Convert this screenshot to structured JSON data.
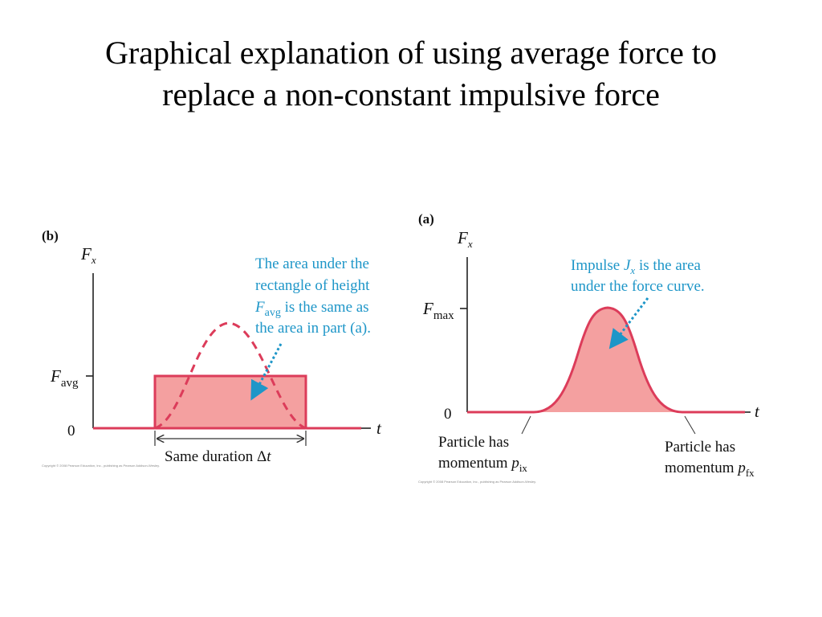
{
  "title": {
    "line1": "Graphical explanation of using average force to",
    "line2": "replace a non-constant impulsive force"
  },
  "colors": {
    "curve": "#dc3c5a",
    "fill": "#f4a0a0",
    "annotation": "#1e96c8",
    "axis": "#222222"
  },
  "panel_b": {
    "label": "(b)",
    "y_axis_main": "F",
    "y_axis_sub": "x",
    "x_axis": "t",
    "favg_main": "F",
    "favg_sub": "avg",
    "zero": "0",
    "note_line1": "The area under the",
    "note_line2": "rectangle of height",
    "note_line3_main": "F",
    "note_line3_sub": "avg",
    "note_line3_rest": " is the same as",
    "note_line4": "the area in part (a).",
    "duration_text": "Same duration ",
    "duration_delta": "Δ",
    "duration_t": "t",
    "copyright": "Copyright © 2008 Pearson Education, Inc., publishing as Pearson Addison-Wesley."
  },
  "panel_a": {
    "label": "(a)",
    "y_axis_main": "F",
    "y_axis_sub": "x",
    "x_axis": "t",
    "fmax_main": "F",
    "fmax_sub": "max",
    "zero": "0",
    "note_line1_pre": "Impulse ",
    "note_line1_J": "J",
    "note_line1_sub": "x",
    "note_line1_rest": " is the area",
    "note_line2": "under the force curve.",
    "left_cap_line1": "Particle has",
    "left_cap_line2": "momentum ",
    "left_cap_p": "p",
    "left_cap_sub": "ix",
    "right_cap_line1": "Particle has",
    "right_cap_line2": "momentum ",
    "right_cap_p": "p",
    "right_cap_sub": "fx",
    "copyright": "Copyright © 2008 Pearson Education, Inc., publishing as Pearson Addison-Wesley."
  }
}
